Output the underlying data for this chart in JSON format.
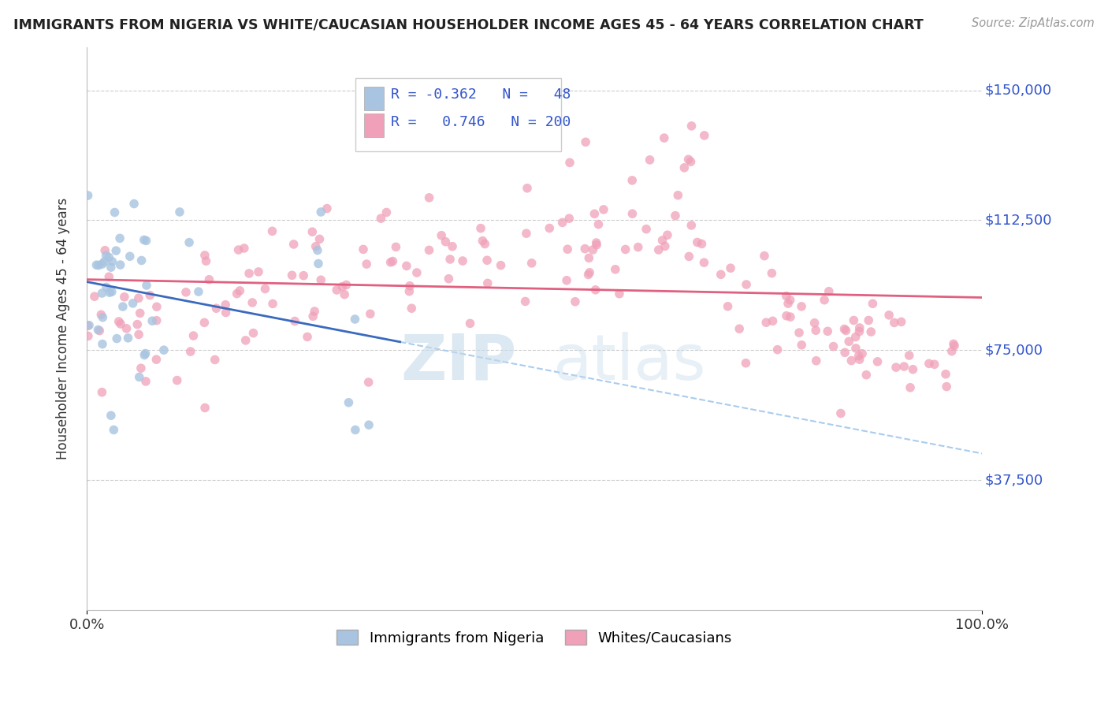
{
  "title": "IMMIGRANTS FROM NIGERIA VS WHITE/CAUCASIAN HOUSEHOLDER INCOME AGES 45 - 64 YEARS CORRELATION CHART",
  "source": "Source: ZipAtlas.com",
  "ylabel": "Householder Income Ages 45 - 64 years",
  "xlim": [
    0,
    1.0
  ],
  "ylim": [
    0,
    162500
  ],
  "yticks": [
    37500,
    75000,
    112500,
    150000
  ],
  "ytick_labels": [
    "$37,500",
    "$75,000",
    "$112,500",
    "$150,000"
  ],
  "xtick_labels": [
    "0.0%",
    "100.0%"
  ],
  "color_nigeria": "#a8c4e0",
  "color_white": "#f0a0b8",
  "color_nigeria_line": "#3a6abf",
  "color_white_line": "#e06080",
  "color_text_blue": "#3355cc",
  "background_color": "#ffffff",
  "grid_color": "#cccccc",
  "nigeria_n": 48,
  "white_n": 200
}
